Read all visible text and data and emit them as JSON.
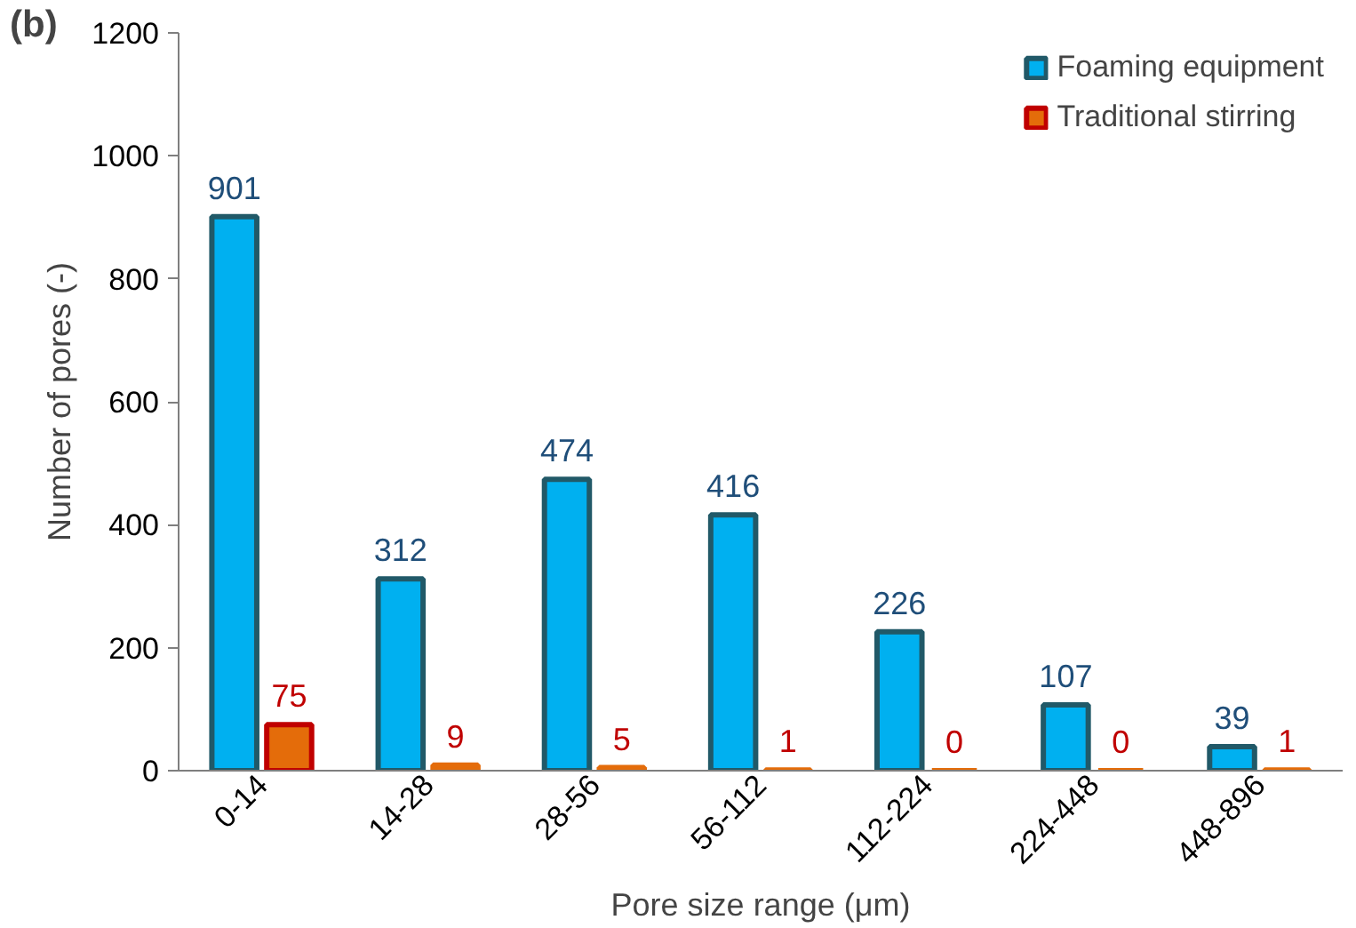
{
  "chart_data": {
    "type": "bar",
    "xlabel": "Pore size range (μm)",
    "ylabel": "Number of pores (-)",
    "annotations": [
      "(b)"
    ],
    "categories": [
      "0-14",
      "14-28",
      "28-56",
      "56-112",
      "112-224",
      "224-448",
      "448-896"
    ],
    "series": [
      {
        "name": "Foaming equipment",
        "color": "#00b0f0",
        "values": [
          901,
          312,
          474,
          416,
          226,
          107,
          39
        ]
      },
      {
        "name": "Traditional stirring",
        "color": "#e46c0a",
        "values": [
          75,
          9,
          5,
          1,
          0,
          0,
          1
        ]
      }
    ],
    "ylim": [
      0,
      1200
    ],
    "yticks": [
      0,
      200,
      400,
      600,
      800,
      1000,
      1200
    ],
    "data_labels": true,
    "grid": false,
    "legend": "top right"
  }
}
